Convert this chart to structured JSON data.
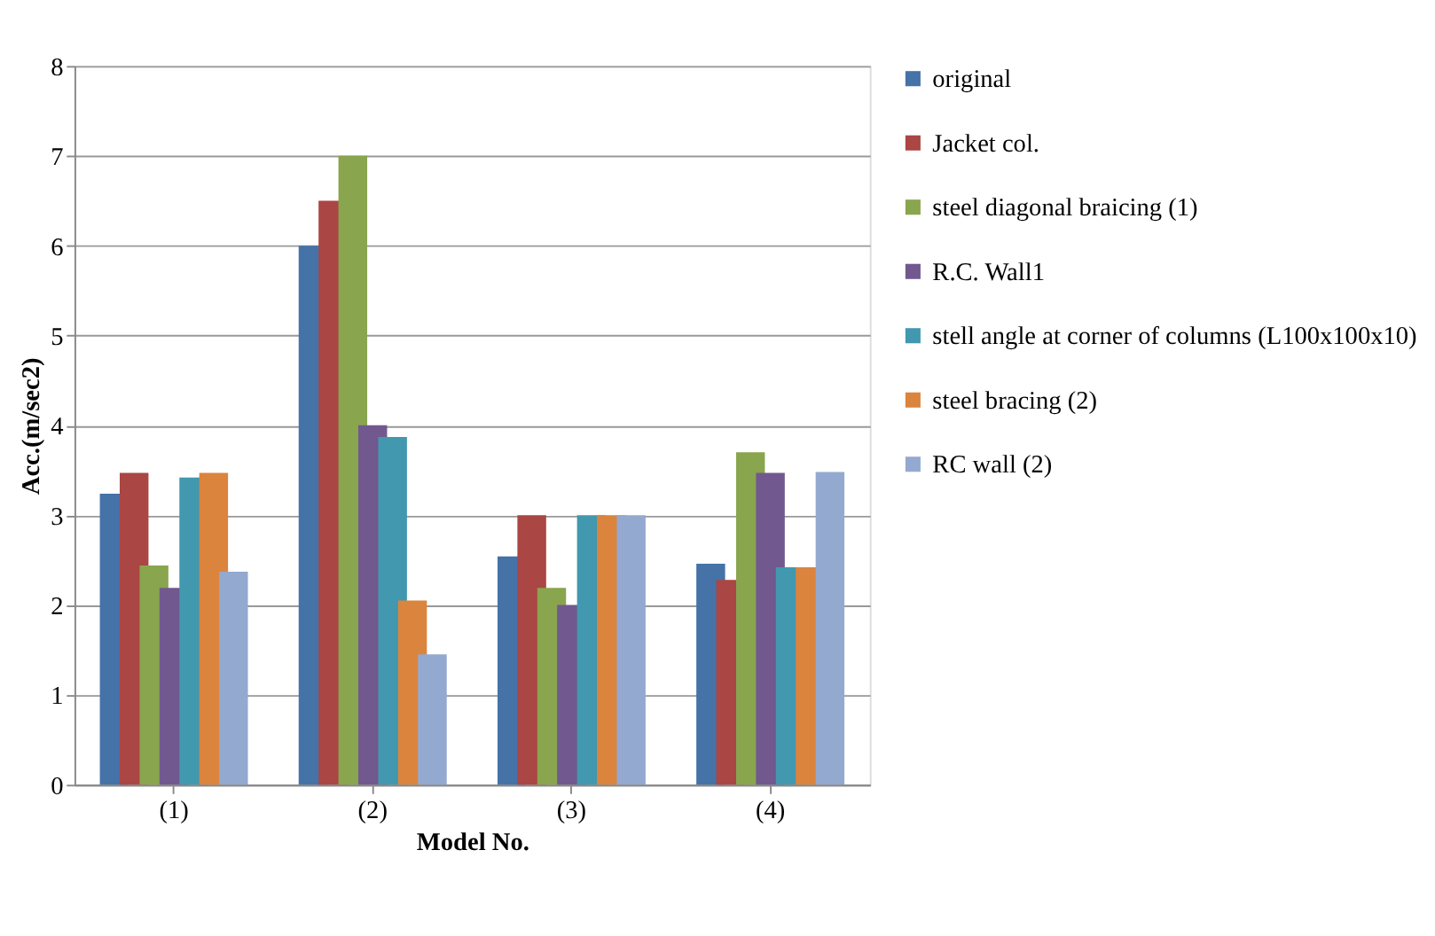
{
  "chart_data": {
    "type": "bar",
    "xlabel": "Model No.",
    "ylabel": "Acc.(m/sec2)",
    "categories": [
      "(1)",
      "(2)",
      "(3)",
      "(4)"
    ],
    "series": [
      {
        "name": "original",
        "color": "#4572a7",
        "values": [
          3.24,
          6,
          2.54,
          2.46
        ]
      },
      {
        "name": "Jacket col.",
        "color": "#aa4643",
        "values": [
          3.47,
          6.5,
          3,
          2.28
        ]
      },
      {
        "name": "steel diagonal braicing (1)",
        "color": "#89a54e",
        "values": [
          2.44,
          7,
          2.19,
          3.7
        ]
      },
      {
        "name": "R.C. Wall1",
        "color": "#71588f",
        "values": [
          2.19,
          4,
          2,
          3.47
        ]
      },
      {
        "name": "stell angle at corner of columns (L100x100x10)",
        "color": "#4198af",
        "values": [
          3.42,
          3.87,
          3,
          2.42
        ]
      },
      {
        "name": "steel bracing (2)",
        "color": "#db843d",
        "values": [
          3.47,
          2.05,
          3,
          2.42
        ]
      },
      {
        "name": "RC wall (2)",
        "color": "#93a9cf",
        "values": [
          2.37,
          1.45,
          3,
          3.48
        ]
      }
    ],
    "ylim": [
      0,
      8
    ],
    "yticks": [
      0,
      1,
      2,
      3,
      4,
      5,
      6,
      7,
      8
    ],
    "grid": "y",
    "legend": "right"
  }
}
